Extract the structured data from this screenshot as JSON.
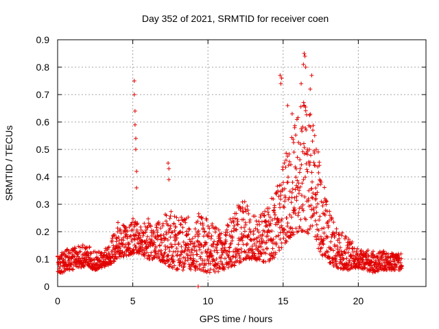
{
  "chart_data": {
    "type": "scatter",
    "title": "Day 352 of 2021, SRMTID for receiver coen",
    "xlabel": "GPS time / hours",
    "ylabel": "SRMTID / TECUs",
    "xlim": [
      0,
      24.5
    ],
    "ylim": [
      0,
      0.9
    ],
    "xticks": [
      "0",
      "5",
      "10",
      "15",
      "20"
    ],
    "yticks": [
      "0",
      "0.1",
      "0.2",
      "0.3",
      "0.4",
      "0.5",
      "0.6",
      "0.7",
      "0.8",
      "0.9"
    ],
    "marker": "plus",
    "color": "#e00000",
    "grid": true,
    "envelope_x": [
      0,
      0.5,
      1,
      1.5,
      2,
      2.5,
      3,
      3.5,
      4,
      4.5,
      5,
      5.5,
      6,
      6.5,
      7,
      7.5,
      8,
      8.5,
      9,
      9.5,
      10,
      10.5,
      11,
      11.5,
      12,
      12.5,
      13,
      13.5,
      14,
      14.5,
      15,
      15.5,
      16,
      16.5,
      17,
      17.5,
      18,
      18.5,
      19,
      19.5,
      20,
      20.5,
      21,
      21.5,
      22,
      22.5,
      23
    ],
    "envelope_low": [
      0.05,
      0.05,
      0.06,
      0.07,
      0.07,
      0.06,
      0.07,
      0.08,
      0.1,
      0.11,
      0.12,
      0.12,
      0.1,
      0.1,
      0.09,
      0.07,
      0.06,
      0.06,
      0.06,
      0.06,
      0.05,
      0.05,
      0.06,
      0.07,
      0.08,
      0.1,
      0.1,
      0.09,
      0.09,
      0.11,
      0.15,
      0.18,
      0.2,
      0.2,
      0.18,
      0.12,
      0.09,
      0.07,
      0.06,
      0.06,
      0.07,
      0.06,
      0.05,
      0.06,
      0.06,
      0.06,
      0.06
    ],
    "envelope_high": [
      0.12,
      0.13,
      0.15,
      0.16,
      0.15,
      0.13,
      0.13,
      0.16,
      0.25,
      0.22,
      0.25,
      0.22,
      0.25,
      0.22,
      0.26,
      0.28,
      0.25,
      0.27,
      0.23,
      0.28,
      0.24,
      0.22,
      0.2,
      0.25,
      0.3,
      0.32,
      0.28,
      0.26,
      0.3,
      0.35,
      0.45,
      0.55,
      0.65,
      0.7,
      0.6,
      0.45,
      0.3,
      0.22,
      0.2,
      0.17,
      0.14,
      0.14,
      0.13,
      0.13,
      0.13,
      0.12,
      0.12
    ],
    "spikes": [
      {
        "x": 5.1,
        "y": 0.75
      },
      {
        "x": 5.1,
        "y": 0.7
      },
      {
        "x": 5.15,
        "y": 0.64
      },
      {
        "x": 5.15,
        "y": 0.59
      },
      {
        "x": 5.2,
        "y": 0.54
      },
      {
        "x": 5.2,
        "y": 0.5
      },
      {
        "x": 5.25,
        "y": 0.42
      },
      {
        "x": 5.25,
        "y": 0.36
      },
      {
        "x": 7.35,
        "y": 0.45
      },
      {
        "x": 7.4,
        "y": 0.43
      },
      {
        "x": 7.4,
        "y": 0.39
      },
      {
        "x": 9.35,
        "y": 0.0
      },
      {
        "x": 14.8,
        "y": 0.77
      },
      {
        "x": 14.9,
        "y": 0.76
      },
      {
        "x": 14.85,
        "y": 0.74
      },
      {
        "x": 16.4,
        "y": 0.85
      },
      {
        "x": 16.45,
        "y": 0.84
      },
      {
        "x": 16.35,
        "y": 0.81
      },
      {
        "x": 16.5,
        "y": 0.8
      },
      {
        "x": 16.9,
        "y": 0.77
      },
      {
        "x": 16.2,
        "y": 0.74
      },
      {
        "x": 16.8,
        "y": 0.72
      },
      {
        "x": 15.3,
        "y": 0.66
      },
      {
        "x": 15.6,
        "y": 0.63
      },
      {
        "x": 16.95,
        "y": 0.53
      },
      {
        "x": 17.2,
        "y": 0.5
      }
    ]
  }
}
